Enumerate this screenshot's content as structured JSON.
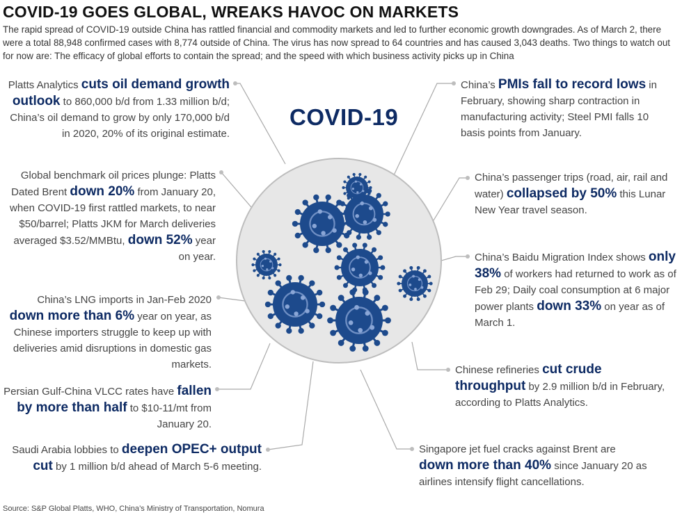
{
  "header": {
    "title": "COVID-19 GOES GLOBAL, WREAKS HAVOC ON MARKETS",
    "subtitle": "The rapid spread of COVID-19 outside China has rattled financial and commodity markets and led to further economic growth downgrades. As of March 2, there were a total 88,948 confirmed cases with 8,774 outside of China. The virus has now spread to 64 countries and has caused 3,043 deaths. Two things to watch out for now are: The efficacy of global efforts to contain the spread; and the speed with which business activity picks up in China"
  },
  "center": {
    "label": "COVID-19"
  },
  "colors": {
    "accent": "#0d2a63",
    "virus": "#1d4a8c",
    "circle_fill": "#e7e7e7",
    "leader": "#a9a9a9"
  },
  "annotations": {
    "left": [
      {
        "pre": "Platts Analytics ",
        "bold": "cuts oil demand growth outlook",
        "post": " to 860,000 b/d from 1.33 million b/d; China’s oil demand to grow by only 170,000 b/d in 2020, 20% of its original estimate."
      },
      {
        "pre": "Global benchmark oil prices plunge: Platts Dated Brent ",
        "bold": "down 20%",
        "post": " from January 20, when COVID-19 first rattled markets, to near $50/barrel; Platts JKM for March deliveries averaged $3.52/MMBtu, ",
        "bold2": "down 52%",
        "post2": " year on year."
      },
      {
        "pre": "China’s LNG imports in Jan-Feb 2020 ",
        "bold": "down more than 6%",
        "post": " year on year, as Chinese importers struggle to keep up with deliveries amid disruptions in domestic gas markets."
      },
      {
        "pre": "Persian Gulf-China VLCC rates have ",
        "bold": "fallen by more than half",
        "post": " to $10-11/mt from January 20."
      },
      {
        "pre": "Saudi Arabia lobbies to ",
        "bold": "deepen OPEC+ output cut",
        "post": " by 1 million b/d ahead of March 5-6 meeting."
      }
    ],
    "right": [
      {
        "pre": "China’s ",
        "bold": "PMIs fall to record lows",
        "post": " in February, showing sharp contraction in manufacturing activity; Steel PMI falls 10 basis points from January."
      },
      {
        "pre": "China’s passenger trips (road, air, rail and water) ",
        "bold": "collapsed by 50%",
        "post": " this Lunar New Year travel season."
      },
      {
        "pre": "China’s Baidu Migration Index shows ",
        "bold": "only 38%",
        "post": " of workers had returned to work as of Feb 29; Daily coal consumption at 6 major power plants ",
        "bold2": "down 33%",
        "post2": " on year as of March 1."
      },
      {
        "pre": "Chinese refineries ",
        "bold": "cut crude throughput",
        "post": " by 2.9 million b/d in February, according to Platts Analytics."
      },
      {
        "pre": "Singapore jet fuel cracks against Brent are ",
        "bold": "down more than 40%",
        "post": " since January 20 as airlines intensify flight cancellations."
      }
    ]
  },
  "icons": {
    "viruses": "virus-icon",
    "dish": "petri-dish-icon"
  },
  "footer": {
    "source": "Source: S&P Global Platts, WHO, China’s Ministry of Transportation, Nomura"
  }
}
